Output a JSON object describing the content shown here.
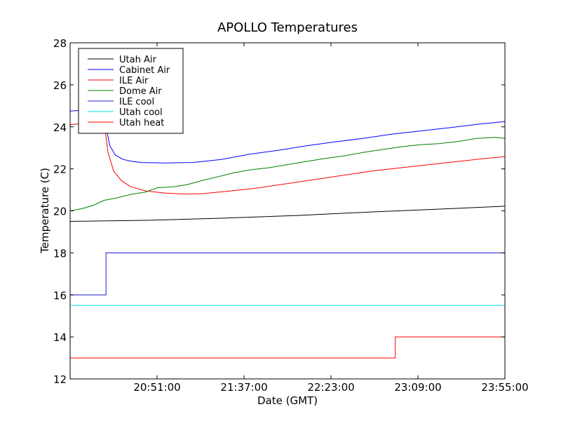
{
  "chart_data": {
    "type": "line",
    "title": "APOLLO Temperatures",
    "xlabel": "Date (GMT)",
    "ylabel": "Temperature (C)",
    "x_unit": "minutes after 20:05:00 GMT",
    "xlim": [
      0,
      230
    ],
    "ylim": [
      12,
      28
    ],
    "x_ticks": [
      {
        "value": 46,
        "label": "20:51:00"
      },
      {
        "value": 92,
        "label": "21:37:00"
      },
      {
        "value": 138,
        "label": "22:23:00"
      },
      {
        "value": 184,
        "label": "23:09:00"
      },
      {
        "value": 230,
        "label": "23:55:00"
      }
    ],
    "y_ticks": [
      {
        "value": 12,
        "label": "12"
      },
      {
        "value": 14,
        "label": "14"
      },
      {
        "value": 16,
        "label": "16"
      },
      {
        "value": 18,
        "label": "18"
      },
      {
        "value": 20,
        "label": "20"
      },
      {
        "value": 22,
        "label": "22"
      },
      {
        "value": 24,
        "label": "24"
      },
      {
        "value": 26,
        "label": "26"
      },
      {
        "value": 28,
        "label": "28"
      }
    ],
    "legend_position": "top-left",
    "series": [
      {
        "name": "Utah Air",
        "color": "#000000",
        "step": false,
        "points": [
          [
            0,
            19.5
          ],
          [
            40,
            19.55
          ],
          [
            80,
            19.65
          ],
          [
            120,
            19.78
          ],
          [
            160,
            19.95
          ],
          [
            200,
            20.1
          ],
          [
            230,
            20.22
          ]
        ]
      },
      {
        "name": "Cabinet Air",
        "color": "#0000ff",
        "step": false,
        "points": [
          [
            0,
            24.75
          ],
          [
            10,
            24.8
          ],
          [
            18,
            24.82
          ],
          [
            19,
            24.0
          ],
          [
            21,
            23.1
          ],
          [
            24,
            22.65
          ],
          [
            28,
            22.45
          ],
          [
            33,
            22.35
          ],
          [
            38,
            22.3
          ],
          [
            50,
            22.28
          ],
          [
            65,
            22.3
          ],
          [
            80,
            22.45
          ],
          [
            95,
            22.7
          ],
          [
            110,
            22.88
          ],
          [
            125,
            23.1
          ],
          [
            140,
            23.28
          ],
          [
            155,
            23.45
          ],
          [
            170,
            23.65
          ],
          [
            185,
            23.8
          ],
          [
            200,
            23.95
          ],
          [
            215,
            24.12
          ],
          [
            230,
            24.25
          ]
        ]
      },
      {
        "name": "ILE Air",
        "color": "#ff0000",
        "step": false,
        "points": [
          [
            0,
            24.1
          ],
          [
            10,
            24.2
          ],
          [
            18,
            24.25
          ],
          [
            20,
            22.8
          ],
          [
            23,
            21.9
          ],
          [
            27,
            21.45
          ],
          [
            32,
            21.15
          ],
          [
            40,
            20.95
          ],
          [
            50,
            20.85
          ],
          [
            60,
            20.8
          ],
          [
            70,
            20.82
          ],
          [
            85,
            20.95
          ],
          [
            100,
            21.1
          ],
          [
            115,
            21.3
          ],
          [
            130,
            21.5
          ],
          [
            145,
            21.7
          ],
          [
            160,
            21.9
          ],
          [
            175,
            22.05
          ],
          [
            190,
            22.2
          ],
          [
            205,
            22.35
          ],
          [
            220,
            22.5
          ],
          [
            230,
            22.58
          ]
        ]
      },
      {
        "name": "Dome Air",
        "color": "#008000",
        "step": false,
        "points": [
          [
            0,
            20.0
          ],
          [
            6,
            20.1
          ],
          [
            12,
            20.25
          ],
          [
            18,
            20.5
          ],
          [
            25,
            20.62
          ],
          [
            32,
            20.78
          ],
          [
            40,
            20.9
          ],
          [
            46,
            21.1
          ],
          [
            55,
            21.15
          ],
          [
            62,
            21.25
          ],
          [
            70,
            21.45
          ],
          [
            78,
            21.62
          ],
          [
            86,
            21.8
          ],
          [
            95,
            21.95
          ],
          [
            105,
            22.05
          ],
          [
            115,
            22.2
          ],
          [
            125,
            22.35
          ],
          [
            135,
            22.5
          ],
          [
            145,
            22.62
          ],
          [
            155,
            22.78
          ],
          [
            165,
            22.92
          ],
          [
            175,
            23.05
          ],
          [
            185,
            23.15
          ],
          [
            195,
            23.2
          ],
          [
            205,
            23.3
          ],
          [
            215,
            23.45
          ],
          [
            225,
            23.5
          ],
          [
            230,
            23.45
          ]
        ]
      },
      {
        "name": "ILE cool",
        "color": "#1c1ccc",
        "step": true,
        "points": [
          [
            0,
            16
          ],
          [
            19,
            16
          ],
          [
            19,
            18
          ],
          [
            230,
            18
          ]
        ]
      },
      {
        "name": "Utah cool",
        "color": "#00e5e5",
        "step": false,
        "points": [
          [
            0,
            15.5
          ],
          [
            230,
            15.5
          ]
        ]
      },
      {
        "name": "Utah heat",
        "color": "#ff0000",
        "step": true,
        "points": [
          [
            0,
            13
          ],
          [
            172,
            13
          ],
          [
            172,
            14
          ],
          [
            230,
            14
          ]
        ]
      }
    ]
  }
}
